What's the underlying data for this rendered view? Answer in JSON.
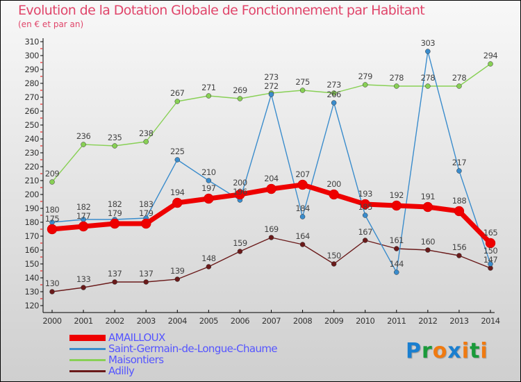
{
  "header": {
    "title": "Evolution de la Dotation Globale de Fonctionnement par Habitant",
    "subtitle": "(en € et par an)"
  },
  "logo": {
    "text": "Proxiti",
    "letters": [
      "P",
      "r",
      "o",
      "x",
      "i",
      "t",
      "i"
    ],
    "colors": [
      "#1a7fd0",
      "#1a9a3a",
      "#f07a10",
      "#1a7fd0",
      "#f07a10",
      "#1a9a3a",
      "#f07a10"
    ]
  },
  "chart_data": {
    "type": "line",
    "title": "Evolution de la Dotation Globale de Fonctionnement par Habitant",
    "subtitle": "(en € et par an)",
    "x": [
      "2000",
      "2001",
      "2002",
      "2003",
      "2004",
      "2005",
      "2006",
      "2007",
      "2008",
      "2009",
      "2010",
      "2011",
      "2012",
      "2013",
      "2014"
    ],
    "ylim": [
      120,
      310
    ],
    "yticks": [
      120,
      130,
      140,
      150,
      160,
      170,
      180,
      190,
      200,
      210,
      220,
      230,
      240,
      250,
      260,
      270,
      280,
      290,
      300,
      310
    ],
    "legend_position": "bottom-left",
    "series": [
      {
        "name": "AMAILLOUX",
        "color": "#ee0000",
        "values": [
          175,
          177,
          179,
          179,
          194,
          197,
          200,
          204,
          207,
          200,
          193,
          192,
          191,
          188,
          165
        ]
      },
      {
        "name": "Saint-Germain-de-Longue-Chaume",
        "color": "#3a8ccc",
        "values": [
          180,
          182,
          182,
          183,
          225,
          210,
          196,
          272,
          184,
          266,
          185,
          144,
          303,
          217,
          150
        ]
      },
      {
        "name": "Maisontiers",
        "color": "#88d055",
        "values": [
          209,
          236,
          235,
          238,
          267,
          271,
          269,
          273,
          275,
          273,
          279,
          278,
          278,
          278,
          294
        ]
      },
      {
        "name": "Adilly",
        "color": "#6a1a1a",
        "values": [
          130,
          133,
          137,
          137,
          139,
          148,
          159,
          169,
          164,
          150,
          167,
          161,
          160,
          156,
          147
        ]
      }
    ]
  }
}
